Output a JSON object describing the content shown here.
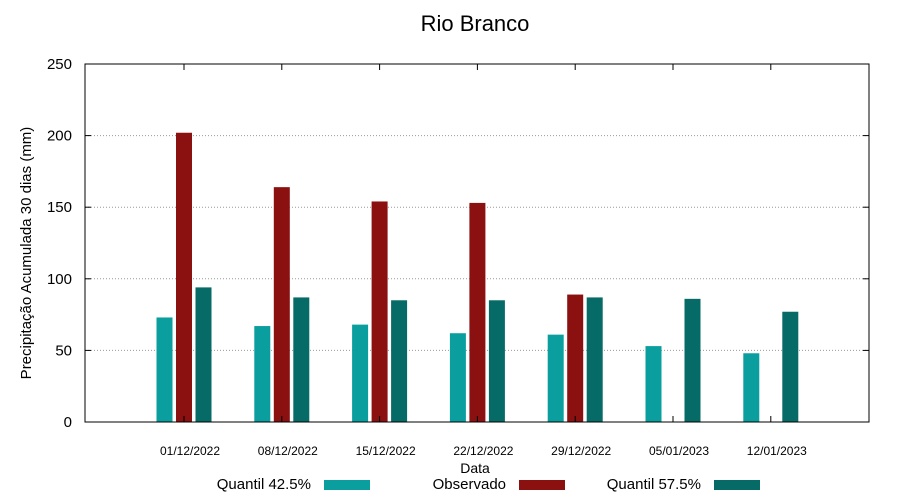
{
  "chart_data": {
    "type": "bar",
    "title": "Rio Branco",
    "xlabel": "Data",
    "ylabel": "Precipitação Acumulada 30 dias (mm)",
    "ylim": [
      0,
      250
    ],
    "yticks": [
      0,
      50,
      100,
      150,
      200,
      250
    ],
    "grid": true,
    "legend_position": "bottom",
    "categories": [
      "01/12/2022",
      "08/12/2022",
      "15/12/2022",
      "22/12/2022",
      "29/12/2022",
      "05/01/2023",
      "12/01/2023"
    ],
    "series": [
      {
        "name": "Quantil 42.5%",
        "color": "#0a9e9e",
        "values": [
          73,
          67,
          68,
          62,
          61,
          53,
          48
        ]
      },
      {
        "name": "Observado",
        "color": "#8b1010",
        "values": [
          202,
          164,
          154,
          153,
          89,
          null,
          null
        ]
      },
      {
        "name": "Quantil 57.5%",
        "color": "#066a66",
        "values": [
          94,
          87,
          85,
          85,
          87,
          86,
          77
        ]
      }
    ]
  }
}
